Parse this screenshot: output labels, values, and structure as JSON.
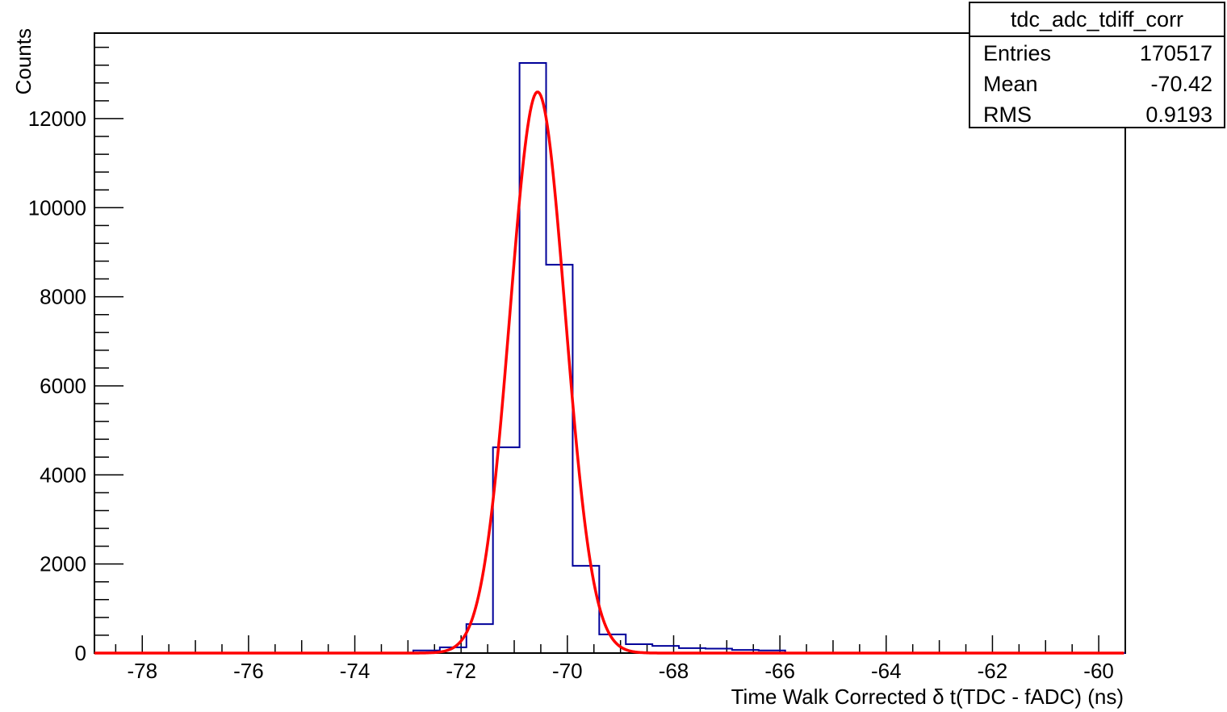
{
  "chart_data": {
    "type": "histogram",
    "title": "",
    "xlabel": "Time Walk Corrected δ t(TDC - fADC) (ns)",
    "ylabel": "Counts",
    "xlim": [
      -78.9,
      -59.5
    ],
    "ylim": [
      0,
      13920
    ],
    "x_major_ticks": [
      -78,
      -76,
      -74,
      -72,
      -70,
      -68,
      -66,
      -64,
      -62,
      -60
    ],
    "y_major_ticks": [
      0,
      2000,
      4000,
      6000,
      8000,
      10000,
      12000
    ],
    "histogram": {
      "name": "tdc_adc_tdiff_corr",
      "color": "#000099",
      "bins": [
        {
          "lo": -72.9,
          "hi": -72.4,
          "count": 60
        },
        {
          "lo": -72.4,
          "hi": -71.9,
          "count": 130
        },
        {
          "lo": -71.9,
          "hi": -71.4,
          "count": 650
        },
        {
          "lo": -71.4,
          "hi": -70.9,
          "count": 4620
        },
        {
          "lo": -70.9,
          "hi": -70.4,
          "count": 13250
        },
        {
          "lo": -70.4,
          "hi": -69.9,
          "count": 8720
        },
        {
          "lo": -69.9,
          "hi": -69.4,
          "count": 1960
        },
        {
          "lo": -69.4,
          "hi": -68.9,
          "count": 420
        },
        {
          "lo": -68.9,
          "hi": -68.4,
          "count": 200
        },
        {
          "lo": -68.4,
          "hi": -67.9,
          "count": 160
        },
        {
          "lo": -67.9,
          "hi": -67.4,
          "count": 110
        },
        {
          "lo": -67.4,
          "hi": -66.9,
          "count": 100
        },
        {
          "lo": -66.9,
          "hi": -66.4,
          "count": 70
        },
        {
          "lo": -66.4,
          "hi": -65.9,
          "count": 60
        }
      ]
    },
    "fit": {
      "type": "gaussian",
      "color": "#ff0000",
      "amplitude": 12600,
      "mean": -70.56,
      "sigma": 0.52
    },
    "stats_box": {
      "title": "tdc_adc_tdiff_corr",
      "rows": [
        {
          "label": "Entries",
          "value": "170517"
        },
        {
          "label": "Mean",
          "value": "-70.42"
        },
        {
          "label": "RMS",
          "value": "0.9193"
        }
      ]
    }
  }
}
